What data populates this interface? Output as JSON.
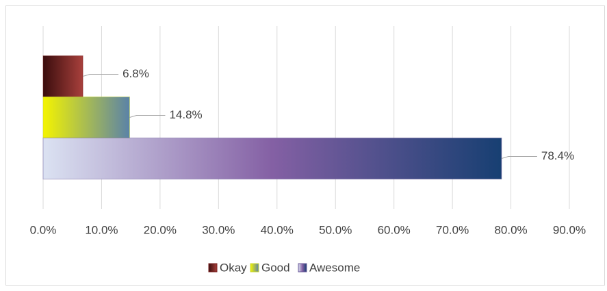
{
  "chart_data": {
    "type": "hbar",
    "categories": [
      null
    ],
    "series": [
      {
        "name": "Okay",
        "color": "#7a2020",
        "gradient": [
          "#3a0d0d",
          "#a8403c"
        ],
        "values": [
          6.8
        ],
        "value_labels": [
          "6.8%"
        ]
      },
      {
        "name": "Good",
        "color": "#c8d830",
        "gradient": [
          "#f4f400",
          "#5a82a8"
        ],
        "values": [
          14.8
        ],
        "value_labels": [
          "14.8%"
        ]
      },
      {
        "name": "Awesome",
        "color": "#6a5a9a",
        "gradient": [
          "#dbe2f2",
          "#8460a4",
          "#173f72"
        ],
        "values": [
          78.4
        ],
        "value_labels": [
          "78.4%"
        ]
      }
    ],
    "xlim": [
      0,
      90
    ],
    "xticks": [
      {
        "value": 0,
        "label": "0.0%"
      },
      {
        "value": 10,
        "label": "10.0%"
      },
      {
        "value": 20,
        "label": "20.0%"
      },
      {
        "value": 30,
        "label": "30.0%"
      },
      {
        "value": 40,
        "label": "40.0%"
      },
      {
        "value": 50,
        "label": "50.0%"
      },
      {
        "value": 60,
        "label": "60.0%"
      },
      {
        "value": 70,
        "label": "70.0%"
      },
      {
        "value": 80,
        "label": "80.0%"
      },
      {
        "value": 90,
        "label": "90.0%"
      }
    ],
    "grid": true,
    "legend": "bottom"
  }
}
